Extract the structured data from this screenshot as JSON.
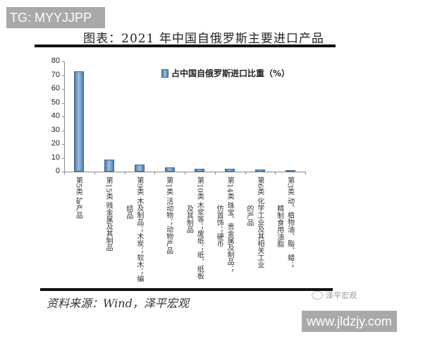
{
  "watermark_top": "TG: MYYJJPP",
  "watermark_bottom": "www.jldzjy.com",
  "brand": "泽平宏观",
  "source": "资料来源：Wind，泽平宏观",
  "chart_data": {
    "type": "bar",
    "title": "图表：2021 年中国自俄罗斯主要进口产品",
    "xlabel": "",
    "ylabel": "",
    "ylim": [
      0,
      80
    ],
    "yticks": [
      0,
      10,
      20,
      30,
      40,
      50,
      60,
      70,
      80
    ],
    "grid": false,
    "legend_position": "top-right",
    "categories": [
      [
        "第5类",
        "矿产品"
      ],
      [
        "第15类",
        "贱金属及其制品"
      ],
      [
        "第9类",
        "木及制品；木炭；软木；编",
        "结品"
      ],
      [
        "第1类",
        "活动物；动物产品"
      ],
      [
        "第10类",
        "木浆等；废纸；纸、纸板",
        "及其制品"
      ],
      [
        "第14类",
        "珠宝、贵金属及制品；",
        "仿首饰；硬币"
      ],
      [
        "第6类",
        "化学工业及其相关工业",
        "的产品"
      ],
      [
        "第3类",
        "动、植物油、脂、蜡；",
        "精制食用油脂"
      ]
    ],
    "series": [
      {
        "name": "占中国自俄罗斯进口比重（%）",
        "color": "#5a87b8",
        "values": [
          72.8,
          8.8,
          5.0,
          2.9,
          1.9,
          1.8,
          1.5,
          1.1
        ]
      }
    ]
  }
}
